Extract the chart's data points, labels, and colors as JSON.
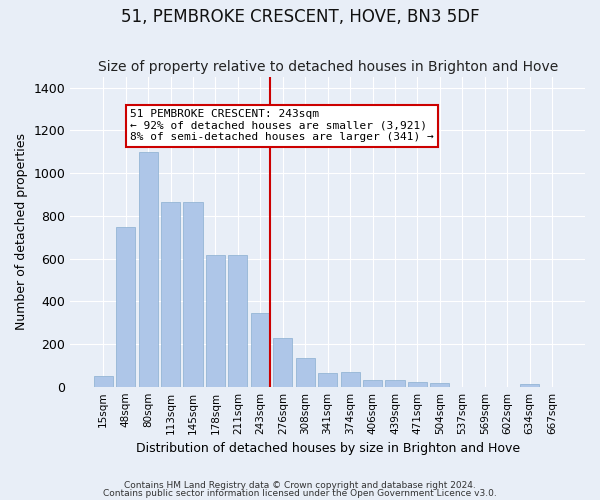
{
  "title": "51, PEMBROKE CRESCENT, HOVE, BN3 5DF",
  "subtitle": "Size of property relative to detached houses in Brighton and Hove",
  "xlabel": "Distribution of detached houses by size in Brighton and Hove",
  "ylabel": "Number of detached properties",
  "footnote1": "Contains HM Land Registry data © Crown copyright and database right 2024.",
  "footnote2": "Contains public sector information licensed under the Open Government Licence v3.0.",
  "bar_labels": [
    "15sqm",
    "48sqm",
    "80sqm",
    "113sqm",
    "145sqm",
    "178sqm",
    "211sqm",
    "243sqm",
    "276sqm",
    "308sqm",
    "341sqm",
    "374sqm",
    "406sqm",
    "439sqm",
    "471sqm",
    "504sqm",
    "537sqm",
    "569sqm",
    "602sqm",
    "634sqm",
    "667sqm"
  ],
  "bar_values": [
    50,
    750,
    1100,
    865,
    865,
    615,
    615,
    345,
    230,
    135,
    65,
    70,
    30,
    30,
    22,
    15,
    0,
    0,
    0,
    12,
    0
  ],
  "bar_color": "#aec6e8",
  "bar_edge_color": "#aec6e8",
  "vline_color": "#cc0000",
  "annotation_text": "51 PEMBROKE CRESCENT: 243sqm\n← 92% of detached houses are smaller (3,921)\n8% of semi-detached houses are larger (341) →",
  "annotation_box_color": "#ffffff",
  "annotation_box_edge": "#cc0000",
  "ylim": [
    0,
    1450
  ],
  "background_color": "#e8eef7",
  "grid_color": "#ffffff",
  "title_fontsize": 12,
  "subtitle_fontsize": 10,
  "footnote_fontsize": 6.5
}
